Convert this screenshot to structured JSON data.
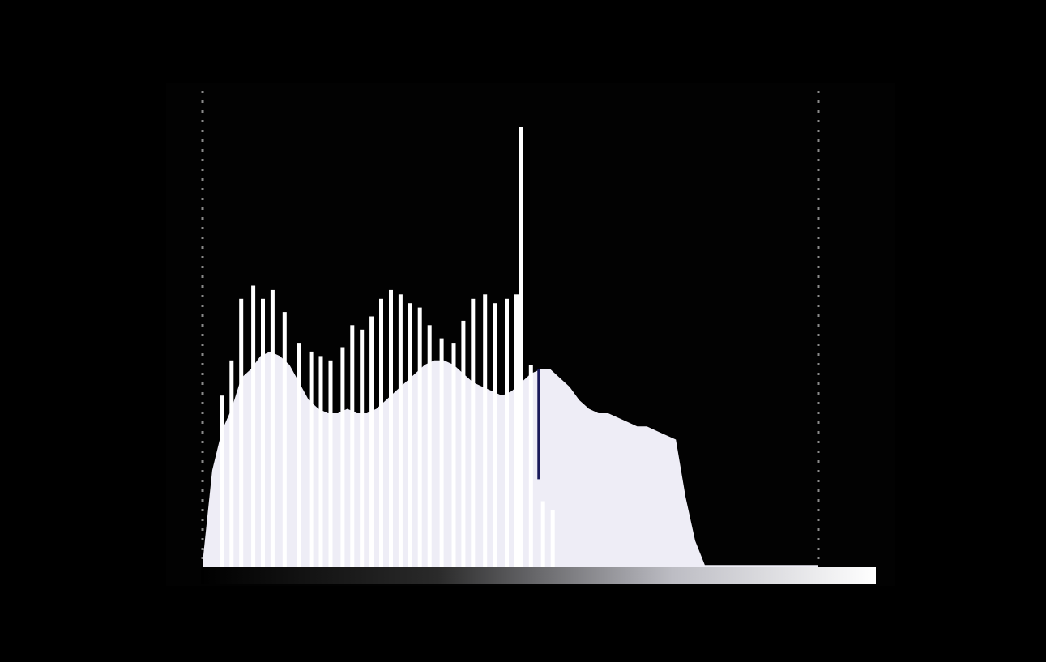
{
  "chart_data": {
    "type": "area",
    "title": "",
    "xlabel": "",
    "ylabel": "",
    "xlim": [
      0,
      255
    ],
    "ylim": [
      0,
      100
    ],
    "grid": false,
    "legend": "none",
    "clipping_guides": [
      0,
      255
    ],
    "x": [
      0,
      4,
      8,
      12,
      16,
      20,
      24,
      28,
      32,
      36,
      40,
      44,
      48,
      52,
      56,
      60,
      64,
      68,
      72,
      76,
      80,
      84,
      88,
      92,
      96,
      100,
      104,
      108,
      112,
      116,
      120,
      124,
      128,
      132,
      136,
      140,
      144,
      148,
      152,
      156,
      160,
      164,
      168,
      172,
      176,
      180,
      184,
      188,
      192,
      196,
      200,
      204,
      208,
      212,
      216,
      220,
      224,
      228,
      232,
      236,
      240,
      244,
      248,
      252,
      255
    ],
    "series": [
      {
        "values": [
          1,
          22,
          31,
          36,
          43,
          45,
          48,
          49,
          48,
          46,
          42,
          38,
          36,
          35,
          35,
          36,
          35,
          35,
          36,
          38,
          40,
          42,
          44,
          46,
          47,
          47,
          46,
          44,
          42,
          41,
          40,
          39,
          40,
          42,
          44,
          45,
          45,
          43,
          41,
          38,
          36,
          35,
          35,
          34,
          33,
          32,
          32,
          31,
          30,
          29,
          16,
          6,
          0.5,
          0.5,
          0.5,
          0.5,
          0.5,
          0.5,
          0.5,
          0.5,
          0.5,
          0.5,
          0.5,
          0.5,
          0.5
        ]
      }
    ],
    "spikes": [
      {
        "x": 8,
        "value": 39
      },
      {
        "x": 12,
        "value": 47
      },
      {
        "x": 16,
        "value": 61
      },
      {
        "x": 21,
        "value": 64
      },
      {
        "x": 25,
        "value": 61
      },
      {
        "x": 29,
        "value": 63
      },
      {
        "x": 34,
        "value": 58
      },
      {
        "x": 40,
        "value": 51
      },
      {
        "x": 45,
        "value": 49
      },
      {
        "x": 49,
        "value": 48
      },
      {
        "x": 53,
        "value": 47
      },
      {
        "x": 58,
        "value": 50
      },
      {
        "x": 62,
        "value": 55
      },
      {
        "x": 66,
        "value": 54
      },
      {
        "x": 70,
        "value": 57
      },
      {
        "x": 74,
        "value": 61
      },
      {
        "x": 78,
        "value": 63
      },
      {
        "x": 82,
        "value": 62
      },
      {
        "x": 86,
        "value": 60
      },
      {
        "x": 90,
        "value": 59
      },
      {
        "x": 94,
        "value": 55
      },
      {
        "x": 99,
        "value": 52
      },
      {
        "x": 104,
        "value": 51
      },
      {
        "x": 108,
        "value": 56
      },
      {
        "x": 112,
        "value": 61
      },
      {
        "x": 117,
        "value": 62
      },
      {
        "x": 121,
        "value": 60
      },
      {
        "x": 126,
        "value": 61
      },
      {
        "x": 130,
        "value": 62
      },
      {
        "x": 132,
        "value": 100
      },
      {
        "x": 136,
        "value": 46
      },
      {
        "x": 141,
        "value": 15
      },
      {
        "x": 145,
        "value": 13
      }
    ]
  }
}
